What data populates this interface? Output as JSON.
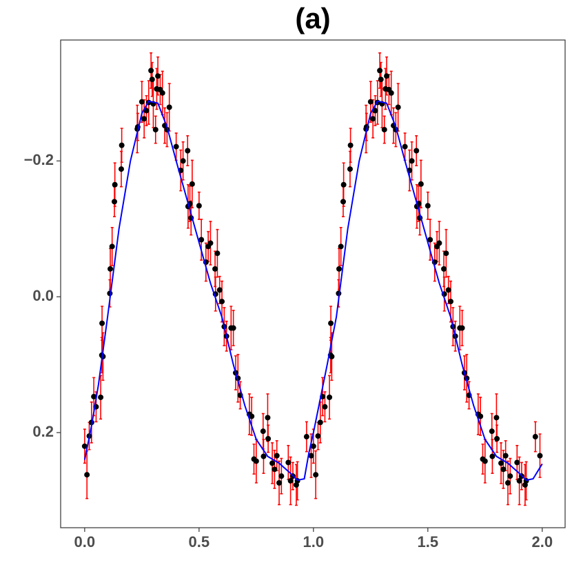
{
  "chart_data": {
    "type": "scatter",
    "title": "(a)",
    "xlim": [
      -0.105,
      2.1
    ],
    "ylim": [
      -0.378,
      0.34
    ],
    "y_reversed": true,
    "xticks": [
      {
        "value": 0,
        "label": "0.0"
      },
      0.5,
      {
        "value": 1,
        "label": "1.0"
      },
      1.5,
      {
        "value": 2,
        "label": "2.0"
      }
    ],
    "yticks": [
      {
        "value": -0.2,
        "label": "−0.2"
      },
      {
        "value": 0,
        "label": "0.0"
      },
      0.2
    ],
    "series": [
      {
        "type": "scatter",
        "color": "#000000",
        "error_color": "#ff0000",
        "x": [
          0.0,
          0.01,
          0.02,
          0.03,
          0.04,
          0.05,
          0.07,
          0.075,
          0.076,
          0.08,
          0.11,
          0.112,
          0.12,
          0.13,
          0.132,
          0.16,
          0.162,
          0.23,
          0.232,
          0.25,
          0.26,
          0.27,
          0.28,
          0.29,
          0.295,
          0.3,
          0.31,
          0.315,
          0.32,
          0.33,
          0.34,
          0.35,
          0.36,
          0.37,
          0.4,
          0.42,
          0.43,
          0.45,
          0.452,
          0.46,
          0.465,
          0.47,
          0.5,
          0.51,
          0.53,
          0.54,
          0.55,
          0.57,
          0.572,
          0.58,
          0.59,
          0.6,
          0.61,
          0.62,
          0.64,
          0.65,
          0.66,
          0.67,
          0.68,
          0.72,
          0.73,
          0.74,
          0.75,
          0.78,
          0.782,
          0.8,
          0.802,
          0.82,
          0.83,
          0.84,
          0.85,
          0.86,
          0.89,
          0.9,
          0.91,
          0.925,
          0.93,
          0.97,
          0.99,
          1.0,
          1.01,
          1.02,
          1.03,
          1.04,
          1.05,
          1.07,
          1.075,
          1.076,
          1.08,
          1.11,
          1.112,
          1.12,
          1.13,
          1.132,
          1.16,
          1.162,
          1.23,
          1.232,
          1.25,
          1.26,
          1.27,
          1.28,
          1.29,
          1.295,
          1.3,
          1.31,
          1.315,
          1.32,
          1.33,
          1.34,
          1.35,
          1.36,
          1.37,
          1.4,
          1.42,
          1.43,
          1.45,
          1.452,
          1.46,
          1.465,
          1.47,
          1.5,
          1.51,
          1.53,
          1.54,
          1.55,
          1.57,
          1.572,
          1.58,
          1.59,
          1.6,
          1.61,
          1.62,
          1.64,
          1.65,
          1.66,
          1.67,
          1.68,
          1.72,
          1.73,
          1.74,
          1.75,
          1.78,
          1.782,
          1.8,
          1.802,
          1.82,
          1.83,
          1.84,
          1.85,
          1.86,
          1.89,
          1.9,
          1.91,
          1.925,
          1.93,
          1.97,
          1.99
        ],
        "y": [
          0.22,
          0.262,
          0.205,
          0.185,
          0.147,
          0.162,
          0.148,
          0.086,
          0.039,
          0.088,
          -0.005,
          -0.041,
          -0.074,
          -0.14,
          -0.165,
          -0.188,
          -0.223,
          -0.247,
          -0.25,
          -0.287,
          -0.262,
          -0.274,
          -0.286,
          -0.333,
          -0.32,
          -0.284,
          -0.246,
          -0.306,
          -0.325,
          -0.305,
          -0.3,
          -0.252,
          -0.246,
          -0.279,
          -0.221,
          -0.186,
          -0.2,
          -0.215,
          -0.133,
          -0.137,
          -0.116,
          -0.166,
          -0.134,
          -0.084,
          -0.051,
          -0.074,
          -0.079,
          -0.041,
          -0.004,
          -0.064,
          -0.01,
          0.007,
          0.044,
          0.058,
          0.046,
          0.046,
          0.112,
          0.12,
          0.145,
          0.173,
          0.176,
          0.239,
          0.242,
          0.198,
          0.235,
          0.178,
          0.209,
          0.245,
          0.254,
          0.234,
          0.274,
          0.264,
          0.244,
          0.271,
          0.264,
          0.277,
          0.271,
          0.206,
          0.234,
          0.22,
          0.262,
          0.205,
          0.185,
          0.147,
          0.162,
          0.148,
          0.086,
          0.039,
          0.088,
          -0.005,
          -0.041,
          -0.074,
          -0.14,
          -0.165,
          -0.188,
          -0.223,
          -0.247,
          -0.25,
          -0.287,
          -0.262,
          -0.274,
          -0.286,
          -0.333,
          -0.32,
          -0.284,
          -0.246,
          -0.306,
          -0.325,
          -0.305,
          -0.3,
          -0.252,
          -0.246,
          -0.279,
          -0.221,
          -0.186,
          -0.2,
          -0.215,
          -0.133,
          -0.137,
          -0.116,
          -0.166,
          -0.134,
          -0.084,
          -0.051,
          -0.074,
          -0.079,
          -0.041,
          -0.004,
          -0.064,
          -0.01,
          0.007,
          0.044,
          0.058,
          0.046,
          0.046,
          0.112,
          0.12,
          0.145,
          0.173,
          0.176,
          0.239,
          0.242,
          0.198,
          0.235,
          0.178,
          0.209,
          0.245,
          0.254,
          0.234,
          0.274,
          0.264,
          0.244,
          0.271,
          0.264,
          0.277,
          0.271,
          0.206,
          0.234
        ],
        "err": [
          0.025,
          0.035,
          0.02,
          0.03,
          0.028,
          0.022,
          0.032,
          0.026,
          0.025,
          0.035,
          0.02,
          0.03,
          0.028,
          0.022,
          0.032,
          0.026,
          0.025,
          0.035,
          0.02,
          0.03,
          0.028,
          0.022,
          0.032,
          0.026,
          0.025,
          0.035,
          0.02,
          0.03,
          0.028,
          0.022,
          0.032,
          0.026,
          0.025,
          0.035,
          0.02,
          0.03,
          0.028,
          0.022,
          0.032,
          0.026,
          0.025,
          0.035,
          0.02,
          0.03,
          0.028,
          0.022,
          0.032,
          0.026,
          0.025,
          0.035,
          0.02,
          0.03,
          0.028,
          0.022,
          0.032,
          0.026,
          0.025,
          0.035,
          0.02,
          0.03,
          0.028,
          0.022,
          0.032,
          0.026,
          0.025,
          0.035,
          0.02,
          0.03,
          0.028,
          0.022,
          0.032,
          0.026,
          0.025,
          0.035,
          0.02,
          0.03,
          0.028,
          0.022,
          0.032,
          0.025,
          0.035,
          0.02,
          0.03,
          0.028,
          0.022,
          0.032,
          0.026,
          0.025,
          0.035,
          0.02,
          0.03,
          0.028,
          0.022,
          0.032,
          0.026,
          0.025,
          0.035,
          0.02,
          0.03,
          0.028,
          0.022,
          0.032,
          0.026,
          0.025,
          0.035,
          0.02,
          0.03,
          0.028,
          0.022,
          0.032,
          0.026,
          0.025,
          0.035,
          0.02,
          0.03,
          0.028,
          0.022,
          0.032,
          0.026,
          0.025,
          0.035,
          0.02,
          0.03,
          0.028,
          0.022,
          0.032,
          0.026,
          0.025,
          0.035,
          0.02,
          0.03,
          0.028,
          0.022,
          0.032,
          0.026,
          0.025,
          0.035,
          0.02,
          0.03,
          0.028,
          0.022,
          0.032,
          0.026,
          0.025,
          0.035,
          0.02,
          0.03,
          0.028,
          0.022,
          0.032,
          0.026,
          0.025,
          0.035,
          0.02,
          0.03,
          0.028,
          0.022,
          0.032
        ]
      },
      {
        "type": "line",
        "color": "#0000ff",
        "x": [
          0,
          0.03,
          0.06,
          0.1,
          0.15,
          0.2,
          0.25,
          0.28,
          0.32,
          0.36,
          0.4,
          0.45,
          0.5,
          0.55,
          0.6,
          0.65,
          0.7,
          0.75,
          0.8,
          0.85,
          0.9,
          0.93,
          0.96,
          0.98,
          1.0,
          1.03,
          1.06,
          1.1,
          1.15,
          1.2,
          1.25,
          1.28,
          1.32,
          1.36,
          1.4,
          1.45,
          1.5,
          1.55,
          1.6,
          1.65,
          1.7,
          1.75,
          1.8,
          1.85,
          1.9,
          1.93,
          1.96,
          2.0
        ],
        "y": [
          0.24,
          0.19,
          0.13,
          0.03,
          -0.1,
          -0.2,
          -0.27,
          -0.288,
          -0.285,
          -0.25,
          -0.2,
          -0.14,
          -0.08,
          -0.02,
          0.03,
          0.1,
          0.16,
          0.21,
          0.235,
          0.245,
          0.26,
          0.27,
          0.268,
          0.23,
          0.2,
          0.15,
          0.1,
          0.03,
          -0.1,
          -0.2,
          -0.27,
          -0.288,
          -0.285,
          -0.25,
          -0.2,
          -0.14,
          -0.08,
          -0.02,
          0.03,
          0.1,
          0.16,
          0.21,
          0.235,
          0.245,
          0.26,
          0.27,
          0.268,
          0.246
        ]
      }
    ]
  }
}
